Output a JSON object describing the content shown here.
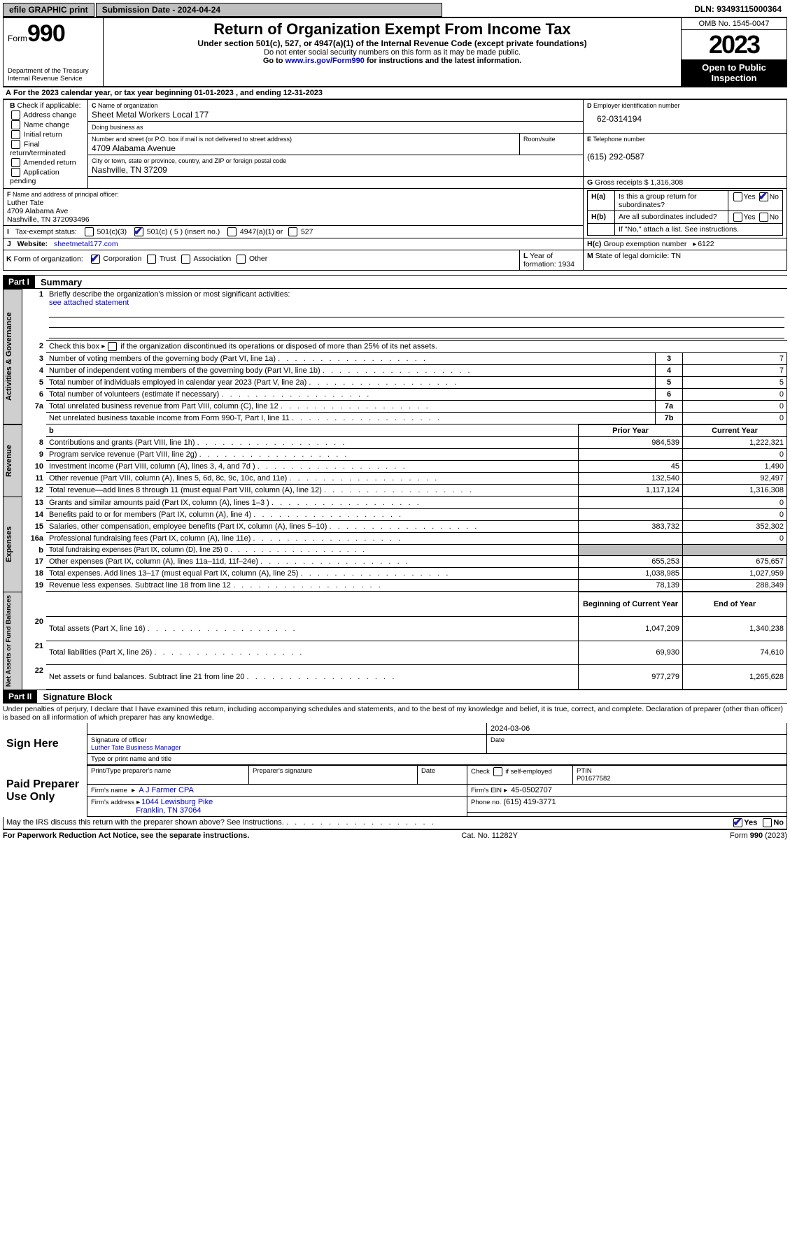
{
  "topbar": {
    "efile": "efile GRAPHIC print",
    "submission_label": "Submission Date - 2024-04-24",
    "dln": "DLN: 93493115000364"
  },
  "header": {
    "form_prefix": "Form",
    "form_num": "990",
    "dept1": "Department of the Treasury",
    "dept2": "Internal Revenue Service",
    "title": "Return of Organization Exempt From Income Tax",
    "sub1": "Under section 501(c), 527, or 4947(a)(1) of the Internal Revenue Code (except private foundations)",
    "sub2": "Do not enter social security numbers on this form as it may be made public.",
    "sub3_pre": "Go to ",
    "sub3_link": "www.irs.gov/Form990",
    "sub3_post": " for instructions and the latest information.",
    "omb": "OMB No. 1545-0047",
    "year": "2023",
    "open_pub": "Open to Public Inspection"
  },
  "A": {
    "line": "For the 2023 calendar year, or tax year beginning 01-01-2023    , and ending 12-31-2023"
  },
  "B": {
    "header": "Check if applicable:",
    "opts": [
      "Address change",
      "Name change",
      "Initial return",
      "Final return/terminated",
      "Amended return",
      "Application pending"
    ]
  },
  "C": {
    "name_label": "Name of organization",
    "name": "Sheet Metal Workers Local 177",
    "dba_label": "Doing business as",
    "dba": "",
    "street_label": "Number and street (or P.O. box if mail is not delivered to street address)",
    "room_label": "Room/suite",
    "street": "4709 Alabama Avenue",
    "city_label": "City or town, state or province, country, and ZIP or foreign postal code",
    "city": "Nashville, TN  37209"
  },
  "D": {
    "label": "Employer identification number",
    "value": "62-0314194"
  },
  "E": {
    "label": "Telephone number",
    "value": "(615) 292-0587"
  },
  "G": {
    "label": "Gross receipts $",
    "value": "1,316,308"
  },
  "F": {
    "label": "Name and address of principal officer:",
    "name": "Luther Tate",
    "addr1": "4709 Alabama Ave",
    "addr2": "Nashville, TN  372093496"
  },
  "H": {
    "a": "Is this a group return for subordinates?",
    "b": "Are all subordinates included?",
    "b_note": "If \"No,\" attach a list. See instructions.",
    "c_label": "Group exemption number",
    "c_value": "6122",
    "yes": "Yes",
    "no": "No"
  },
  "I": {
    "label": "Tax-exempt status:",
    "o1": "501(c)(3)",
    "o2": "501(c) ( 5 ) (insert no.)",
    "o3": "4947(a)(1) or",
    "o4": "527"
  },
  "J": {
    "label": "Website:",
    "value": "sheetmetal177.com"
  },
  "K": {
    "label": "Form of organization:",
    "opts": [
      "Corporation",
      "Trust",
      "Association",
      "Other"
    ]
  },
  "L": {
    "label": "Year of formation:",
    "value": "1934"
  },
  "M": {
    "label": "State of legal domicile:",
    "value": "TN"
  },
  "part1": {
    "label": "Part I",
    "title": "Summary",
    "q1": "Briefly describe the organization's mission or most significant activities:",
    "q1v": "see attached statement",
    "q2": "Check this box          if the organization discontinued its operations or disposed of more than 25% of its net assets.",
    "ag_label": "Activities & Governance",
    "rev_label": "Revenue",
    "exp_label": "Expenses",
    "na_label": "Net Assets or Fund Balances",
    "prior": "Prior Year",
    "current": "Current Year",
    "bcy": "Beginning of Current Year",
    "eoy": "End of Year",
    "rows_ag": [
      {
        "n": "3",
        "d": "Number of voting members of the governing body (Part VI, line 1a)",
        "c": "3",
        "v": "7"
      },
      {
        "n": "4",
        "d": "Number of independent voting members of the governing body (Part VI, line 1b)",
        "c": "4",
        "v": "7"
      },
      {
        "n": "5",
        "d": "Total number of individuals employed in calendar year 2023 (Part V, line 2a)",
        "c": "5",
        "v": "5"
      },
      {
        "n": "6",
        "d": "Total number of volunteers (estimate if necessary)",
        "c": "6",
        "v": "0"
      },
      {
        "n": "7a",
        "d": "Total unrelated business revenue from Part VIII, column (C), line 12",
        "c": "7a",
        "v": "0"
      },
      {
        "n": "",
        "d": "Net unrelated business taxable income from Form 990-T, Part I, line 11",
        "c": "7b",
        "v": "0"
      }
    ],
    "rows_rev": [
      {
        "n": "8",
        "d": "Contributions and grants (Part VIII, line 1h)",
        "p": "984,539",
        "c": "1,222,321"
      },
      {
        "n": "9",
        "d": "Program service revenue (Part VIII, line 2g)",
        "p": "",
        "c": "0"
      },
      {
        "n": "10",
        "d": "Investment income (Part VIII, column (A), lines 3, 4, and 7d )",
        "p": "45",
        "c": "1,490"
      },
      {
        "n": "11",
        "d": "Other revenue (Part VIII, column (A), lines 5, 6d, 8c, 9c, 10c, and 11e)",
        "p": "132,540",
        "c": "92,497"
      },
      {
        "n": "12",
        "d": "Total revenue—add lines 8 through 11 (must equal Part VIII, column (A), line 12)",
        "p": "1,117,124",
        "c": "1,316,308"
      }
    ],
    "rows_exp": [
      {
        "n": "13",
        "d": "Grants and similar amounts paid (Part IX, column (A), lines 1–3 )",
        "p": "",
        "c": "0"
      },
      {
        "n": "14",
        "d": "Benefits paid to or for members (Part IX, column (A), line 4)",
        "p": "",
        "c": "0"
      },
      {
        "n": "15",
        "d": "Salaries, other compensation, employee benefits (Part IX, column (A), lines 5–10)",
        "p": "383,732",
        "c": "352,302"
      },
      {
        "n": "16a",
        "d": "Professional fundraising fees (Part IX, column (A), line 11e)",
        "p": "",
        "c": "0"
      },
      {
        "n": "b",
        "d": "Total fundraising expenses (Part IX, column (D), line 25) 0",
        "p": "SHADE",
        "c": "SHADE",
        "tiny": true
      },
      {
        "n": "17",
        "d": "Other expenses (Part IX, column (A), lines 11a–11d, 11f–24e)",
        "p": "655,253",
        "c": "675,657"
      },
      {
        "n": "18",
        "d": "Total expenses. Add lines 13–17 (must equal Part IX, column (A), line 25)",
        "p": "1,038,985",
        "c": "1,027,959"
      },
      {
        "n": "19",
        "d": "Revenue less expenses. Subtract line 18 from line 12",
        "p": "78,139",
        "c": "288,349"
      }
    ],
    "rows_na": [
      {
        "n": "20",
        "d": "Total assets (Part X, line 16)",
        "p": "1,047,209",
        "c": "1,340,238"
      },
      {
        "n": "21",
        "d": "Total liabilities (Part X, line 26)",
        "p": "69,930",
        "c": "74,610"
      },
      {
        "n": "22",
        "d": "Net assets or fund balances. Subtract line 21 from line 20",
        "p": "977,279",
        "c": "1,265,628"
      }
    ]
  },
  "part2": {
    "label": "Part II",
    "title": "Signature Block",
    "penalties": "Under penalties of perjury, I declare that I have examined this return, including accompanying schedules and statements, and to the best of my knowledge and belief, it is true, correct, and complete. Declaration of preparer (other than officer) is based on all information of which preparer has any knowledge.",
    "sign_here": "Sign Here",
    "sig_officer": "Signature of officer",
    "sig_date": "Date",
    "sig_date_v": "2024-03-06",
    "officer_line": "Luther Tate Business Manager",
    "type_name": "Type or print name and title",
    "paid": "Paid Preparer Use Only",
    "pt_name_l": "Print/Type preparer's name",
    "pt_sig_l": "Preparer's signature",
    "pt_date_l": "Date",
    "pt_check_l": "Check          if self-employed",
    "pt_ptin_l": "PTIN",
    "pt_ptin_v": "P01677582",
    "firm_name_l": "Firm's name",
    "firm_name_v": "A J Farmer CPA",
    "firm_ein_l": "Firm's EIN",
    "firm_ein_v": "45-0502707",
    "firm_addr_l": "Firm's address",
    "firm_addr1": "1044 Lewisburg Pike",
    "firm_addr2": "Franklin, TN  37064",
    "firm_phone_l": "Phone no.",
    "firm_phone_v": "(615) 419-3771",
    "discuss": "May the IRS discuss this return with the preparer shown above? See Instructions."
  },
  "footer": {
    "left": "For Paperwork Reduction Act Notice, see the separate instructions.",
    "mid": "Cat. No. 11282Y",
    "right_pre": "Form ",
    "right_bold": "990",
    "right_post": " (2023)"
  }
}
